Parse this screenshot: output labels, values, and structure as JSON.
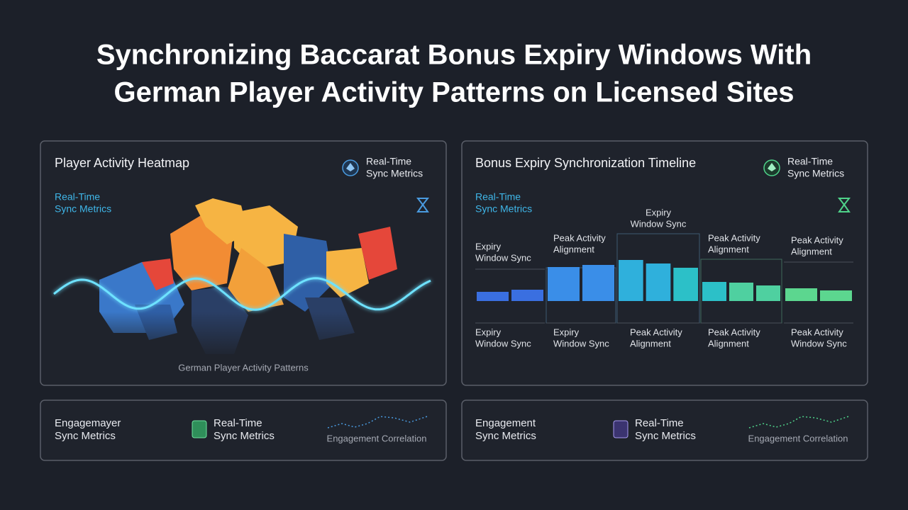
{
  "title": [
    "Synchronizing Baccarat Bonus Expiry Windows With",
    "German Player Activity Patterns on Licensed Sites"
  ],
  "heatmap_panel": {
    "title": "Player Activity Heatmap",
    "badge": [
      "Real-Time",
      "Sync Metrics"
    ],
    "metric": [
      "Real-Time",
      "Sync Metrics"
    ],
    "caption": "German Player Activity Patterns"
  },
  "timeline_panel": {
    "title": "Bonus Expiry Synchronization Timeline",
    "badge": [
      "Real-Time",
      "Sync Metrics"
    ],
    "metric": [
      "Real-Time",
      "Sync Metrics"
    ],
    "groups": [
      {
        "top": [
          "Expiry",
          "Window Sync"
        ],
        "bottom": [
          "Expiry",
          "Window Sync"
        ],
        "bars": [
          13,
          16
        ]
      },
      {
        "top": [
          "Peak Activity",
          "Alignment"
        ],
        "bottom": [
          "Expiry",
          "Window Sync"
        ],
        "bars": [
          48,
          51
        ]
      },
      {
        "top": [
          "Expiry",
          "Window Sync"
        ],
        "bottom": [
          "Peak Activity",
          "Alignment"
        ],
        "bars": [
          58,
          53,
          47
        ]
      },
      {
        "top": [
          "Peak Activity",
          "Alignment"
        ],
        "bottom": [
          "Peak Activity",
          "Alignment"
        ],
        "bars": [
          27,
          26,
          22
        ]
      },
      {
        "top": [
          "Peak Activity",
          "Alignment"
        ],
        "bottom": [
          "Peak Activity",
          "Window Sync"
        ],
        "bars": [
          18,
          15
        ]
      }
    ]
  },
  "engagement_cards": [
    {
      "label": [
        "Engagemayer",
        "Sync Metrics"
      ],
      "badge": [
        "Real-Time",
        "Sync Metrics"
      ],
      "caption": "Engagement Correlation"
    },
    {
      "label": [
        "Engagement",
        "Sync Metrics"
      ],
      "badge": [
        "Real-Time",
        "Sync Metrics"
      ],
      "caption": "Engagement Correlation"
    }
  ]
}
